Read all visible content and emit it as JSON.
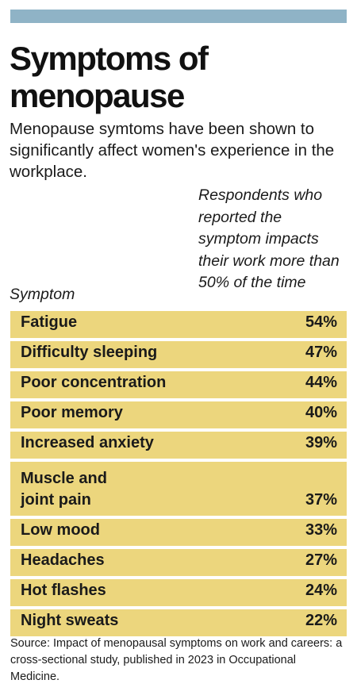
{
  "header": {
    "title": "Symptoms of menopause",
    "subtitle": "Menopause symtoms have been shown to significantly affect women's experience in the workplace.",
    "col_symptom": "Symptom",
    "col_value": "Respondents who reported the symptom impacts their work more than 50% of the time"
  },
  "colors": {
    "bar": "#ecd67d",
    "top_bar": "#8fb3c6"
  },
  "chart_data": {
    "type": "table",
    "categories": [
      "Fatigue",
      "Difficulty sleeping",
      "Poor concentration",
      "Poor memory",
      "Increased anxiety",
      "Muscle and joint pain",
      "Low mood",
      "Headaches",
      "Hot flashes",
      "Night sweats"
    ],
    "values": [
      "54%",
      "47%",
      "44%",
      "40%",
      "39%",
      "37%",
      "33%",
      "27%",
      "24%",
      "22%"
    ]
  },
  "footer": {
    "source": "Source: Impact of menopausal symptoms on work and careers: a cross-sectional study, published in 2023 in Occupational Medicine."
  }
}
